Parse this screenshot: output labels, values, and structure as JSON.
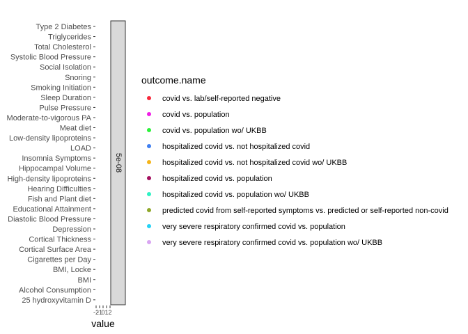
{
  "chart_data": {
    "type": "scatter",
    "facet_label": "5e-08",
    "xlabel": "value",
    "x_ticks": [
      "-2",
      "-1",
      "0",
      "1",
      "2"
    ],
    "categories": [
      "Type 2 Diabetes",
      "Triglycerides",
      "Total Cholesterol",
      "Systolic Blood Pressure",
      "Social Isolation",
      "Snoring",
      "Smoking Initiation",
      "Sleep Duration",
      "Pulse Pressure",
      "Moderate-to-vigorous PA",
      "Meat diet",
      "Low-density lipoproteins",
      "LOAD",
      "Insomnia Symptoms",
      "Hippocampal Volume",
      "High-density lipoproteins",
      "Hearing Difficulties",
      "Fish and Plant diet",
      "Educational Attainment",
      "Diastolic Blood Pressure",
      "Depression",
      "Cortical Thickness",
      "Cortical Surface Area",
      "Cigarettes per Day",
      "BMI, Locke",
      "BMI",
      "Alcohol Consumption",
      "25 hydroxyvitamin D"
    ],
    "legend": {
      "title": "outcome.name",
      "position": "right",
      "entries": [
        {
          "label": "covid vs. lab/self-reported negative",
          "color": "#f8293b"
        },
        {
          "label": "covid vs. population",
          "color": "#f01ee6"
        },
        {
          "label": "covid vs. population wo/ UKBB",
          "color": "#2cf23a"
        },
        {
          "label": "hospitalized covid vs. not hospitalized covid",
          "color": "#3f7ff0"
        },
        {
          "label": "hospitalized covid vs. not hospitalized covid wo/ UKBB",
          "color": "#f5b41a"
        },
        {
          "label": "hospitalized covid vs. population",
          "color": "#a4105f"
        },
        {
          "label": "hospitalized covid vs. population wo/ UKBB",
          "color": "#2ef2c4"
        },
        {
          "label": "predicted covid from self-reported symptoms vs. predicted or self-reported non-covid",
          "color": "#8fa82a"
        },
        {
          "label": "very severe respiratory confirmed covid vs. population",
          "color": "#25d2f5"
        },
        {
          "label": "very severe respiratory confirmed covid vs. population wo/ UKBB",
          "color": "#d9a5f2"
        }
      ]
    },
    "grid": false
  }
}
